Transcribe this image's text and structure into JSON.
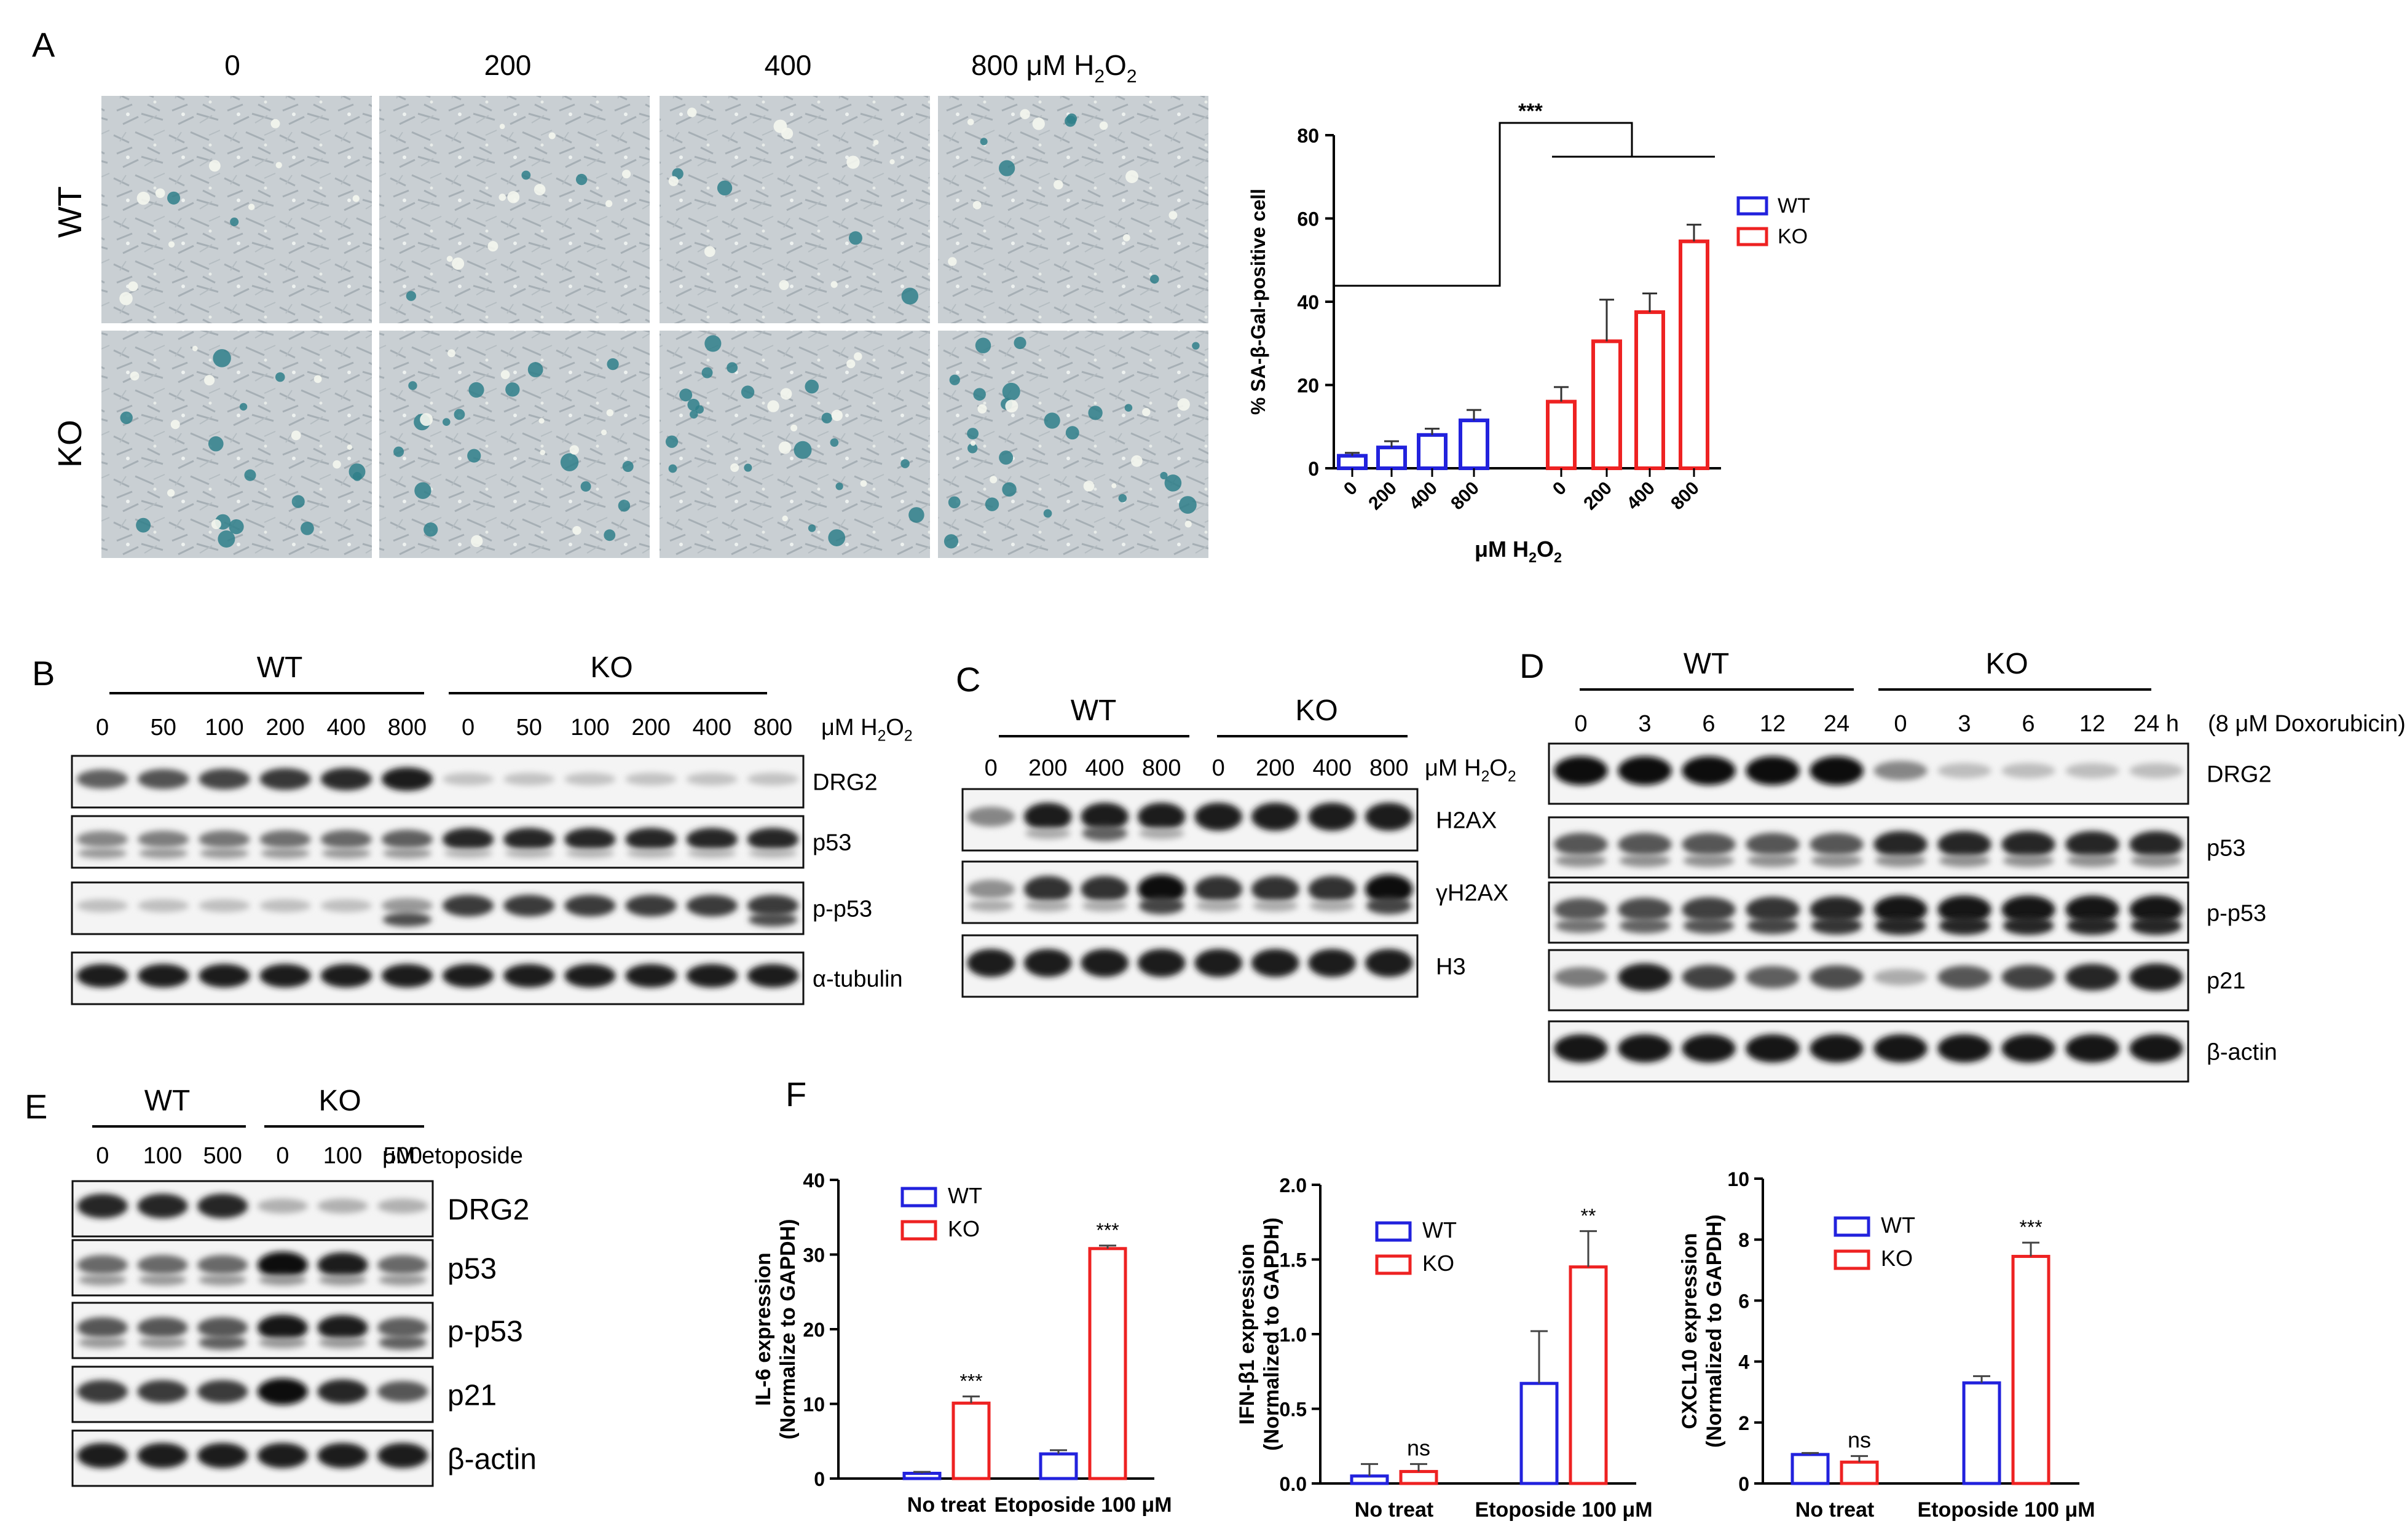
{
  "panelA": {
    "label": "A",
    "dose_headers": [
      "0",
      "200",
      "400"
    ],
    "dose_header_last": "800 μM H",
    "row_labels": [
      "WT",
      "KO"
    ],
    "chart_data": {
      "type": "bar",
      "categories": [
        "0",
        "200",
        "400",
        "800"
      ],
      "series": [
        {
          "name": "WT",
          "color": "#2222dd",
          "values": [
            3,
            5,
            8,
            11.5
          ],
          "errors": [
            0.7,
            1.5,
            1.5,
            2.5
          ]
        },
        {
          "name": "KO",
          "color": "#ee2222",
          "values": [
            16,
            30.5,
            37.5,
            54.5
          ],
          "errors": [
            3.5,
            10,
            4.5,
            4
          ]
        }
      ],
      "ylabel": "% SA-β-Gal-positive cell",
      "xlabel": "μM H",
      "ylim": [
        0,
        80
      ],
      "yticks": [
        0,
        20,
        40,
        60,
        80
      ],
      "significance": "***"
    }
  },
  "panelB": {
    "label": "B",
    "groups": [
      "WT",
      "KO"
    ],
    "lanes": [
      "0",
      "50",
      "100",
      "200",
      "400",
      "800",
      "0",
      "50",
      "100",
      "200",
      "400",
      "800"
    ],
    "unit": "μM H",
    "blots": [
      "DRG2",
      "p53",
      "p-p53",
      "α-tubulin"
    ]
  },
  "panelC": {
    "label": "C",
    "groups": [
      "WT",
      "KO"
    ],
    "lanes": [
      "0",
      "200",
      "400",
      "800",
      "0",
      "200",
      "400",
      "800"
    ],
    "unit": "μM H",
    "blots": [
      "H2AX",
      "γH2AX",
      "H3"
    ]
  },
  "panelD": {
    "label": "D",
    "groups": [
      "WT",
      "KO"
    ],
    "lanes": [
      "0",
      "3",
      "6",
      "12",
      "24",
      "0",
      "3",
      "6",
      "12",
      "24 h"
    ],
    "unit": "(8 μM Doxorubicin)",
    "blots": [
      "DRG2",
      "p53",
      "p-p53",
      "p21",
      "β-actin"
    ]
  },
  "panelE": {
    "label": "E",
    "groups": [
      "WT",
      "KO"
    ],
    "lanes": [
      "0",
      "100",
      "500",
      "0",
      "100",
      "500"
    ],
    "unit": "μM etoposide",
    "blots": [
      "DRG2",
      "p53",
      "p-p53",
      "p21",
      "β-actin"
    ]
  },
  "panelF": {
    "label": "F",
    "chart_data": [
      {
        "type": "bar",
        "title": "",
        "categories": [
          "No treat",
          "Etoposide 100 μM"
        ],
        "series": [
          {
            "name": "WT",
            "color": "#2222dd",
            "values": [
              0.7,
              3.3
            ],
            "errors": [
              0.2,
              0.5
            ]
          },
          {
            "name": "KO",
            "color": "#ee2222",
            "values": [
              10.1,
              30.8
            ],
            "errors": [
              0.9,
              0.4
            ]
          }
        ],
        "ylabel_line1": "IL-6 expression",
        "ylabel_line2": "(Normalize to GAPDH)",
        "ylim": [
          0,
          40
        ],
        "yticks": [
          "0",
          "10",
          "20",
          "30",
          "40"
        ],
        "sig": [
          "",
          "***",
          "",
          "***"
        ]
      },
      {
        "type": "bar",
        "title": "",
        "categories": [
          "No treat",
          "Etoposide 100 μM"
        ],
        "series": [
          {
            "name": "WT",
            "color": "#2222dd",
            "values": [
              0.05,
              0.67
            ],
            "errors": [
              0.08,
              0.35
            ]
          },
          {
            "name": "KO",
            "color": "#ee2222",
            "values": [
              0.08,
              1.45
            ],
            "errors": [
              0.05,
              0.24
            ]
          }
        ],
        "ylabel_line1": "IFN-β1 expression",
        "ylabel_line2": "(Normalized to GAPDH)",
        "ylim": [
          0,
          2.0
        ],
        "yticks": [
          "0.0",
          "0.5",
          "1.0",
          "1.5",
          "2.0"
        ],
        "sig": [
          "",
          "ns",
          "",
          "**"
        ]
      },
      {
        "type": "bar",
        "title": "",
        "categories": [
          "No treat",
          "Etoposide 100 μM"
        ],
        "series": [
          {
            "name": "WT",
            "color": "#2222dd",
            "values": [
              0.95,
              3.3
            ],
            "errors": [
              0.05,
              0.22
            ]
          },
          {
            "name": "KO",
            "color": "#ee2222",
            "values": [
              0.7,
              7.45
            ],
            "errors": [
              0.2,
              0.45
            ]
          }
        ],
        "ylabel_line1": "CXCL10 expression",
        "ylabel_line2": "(Normalized to GAPDH)",
        "ylim": [
          0,
          10
        ],
        "yticks": [
          "0",
          "2",
          "4",
          "6",
          "8",
          "10"
        ],
        "sig": [
          "",
          "ns",
          "",
          "***"
        ]
      }
    ]
  }
}
